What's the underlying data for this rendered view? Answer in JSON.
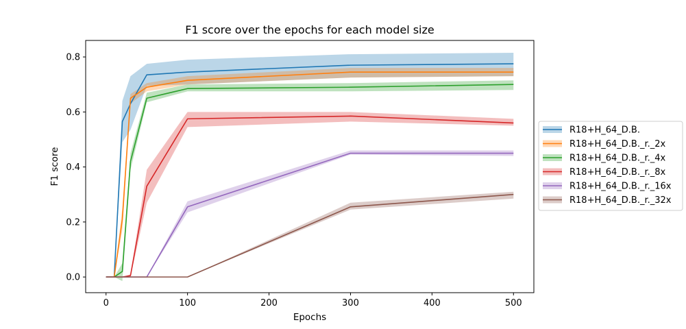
{
  "chart_data": {
    "type": "line",
    "title": "F1 score over the epochs for each model size",
    "xlabel": "Epochs",
    "ylabel": "F1 score",
    "xlim": [
      -25,
      525
    ],
    "ylim": [
      -0.057,
      0.86
    ],
    "xticks": [
      0,
      100,
      200,
      300,
      400,
      500
    ],
    "yticks": [
      0.0,
      0.2,
      0.4,
      0.6,
      0.8
    ],
    "xtick_labels": [
      "0",
      "100",
      "200",
      "300",
      "400",
      "500"
    ],
    "ytick_labels": [
      "0.0",
      "0.2",
      "0.4",
      "0.6",
      "0.8"
    ],
    "grid": false,
    "legend_position": "right, outside plot",
    "x": [
      0,
      10,
      20,
      30,
      50,
      100,
      300,
      500
    ],
    "series": [
      {
        "name": "R18+H_64_D.B.",
        "color": "#1f77b4",
        "values": [
          0.0,
          0.0,
          0.565,
          0.63,
          0.735,
          0.745,
          0.77,
          0.775
        ],
        "lower": [
          0.0,
          0.0,
          0.49,
          0.535,
          0.695,
          0.7,
          0.725,
          0.73
        ],
        "upper": [
          0.0,
          0.0,
          0.64,
          0.73,
          0.775,
          0.79,
          0.81,
          0.815
        ]
      },
      {
        "name": "R18+H_64_D.B._r._2x",
        "color": "#ff7f0e",
        "values": [
          0.0,
          0.0,
          0.21,
          0.65,
          0.69,
          0.715,
          0.745,
          0.745
        ],
        "lower": [
          0.0,
          0.0,
          0.17,
          0.63,
          0.675,
          0.7,
          0.725,
          0.73
        ],
        "upper": [
          0.0,
          0.0,
          0.25,
          0.665,
          0.705,
          0.73,
          0.76,
          0.76
        ]
      },
      {
        "name": "R18+H_64_D.B._r._4x",
        "color": "#2ca02c",
        "values": [
          0.0,
          0.0,
          0.02,
          0.42,
          0.65,
          0.685,
          0.69,
          0.7
        ],
        "lower": [
          0.0,
          0.0,
          -0.015,
          0.39,
          0.635,
          0.675,
          0.675,
          0.68
        ],
        "upper": [
          0.0,
          0.0,
          0.05,
          0.45,
          0.67,
          0.7,
          0.705,
          0.715
        ]
      },
      {
        "name": "R18+H_64_D.B._r._8x",
        "color": "#d62728",
        "values": [
          0.0,
          0.0,
          0.0,
          0.005,
          0.33,
          0.575,
          0.585,
          0.56
        ],
        "lower": [
          0.0,
          0.0,
          0.0,
          0.0,
          0.27,
          0.545,
          0.565,
          0.55
        ],
        "upper": [
          0.0,
          0.0,
          0.0,
          0.01,
          0.39,
          0.6,
          0.6,
          0.575
        ]
      },
      {
        "name": "R18+H_64_D.B._r._16x",
        "color": "#9467bd",
        "values": [
          0.0,
          0.0,
          0.0,
          0.0,
          0.0,
          0.255,
          0.45,
          0.45
        ],
        "lower": [
          0.0,
          0.0,
          0.0,
          0.0,
          0.0,
          0.235,
          0.445,
          0.44
        ],
        "upper": [
          0.0,
          0.0,
          0.0,
          0.0,
          0.0,
          0.275,
          0.46,
          0.46
        ]
      },
      {
        "name": "R18+H_64_D.B._r._32x",
        "color": "#8c564b",
        "values": [
          0.0,
          0.0,
          0.0,
          0.0,
          0.0,
          0.0,
          0.255,
          0.3
        ],
        "lower": [
          0.0,
          0.0,
          0.0,
          0.0,
          0.0,
          0.0,
          0.245,
          0.285
        ],
        "upper": [
          0.0,
          0.0,
          0.0,
          0.0,
          0.0,
          0.0,
          0.27,
          0.31
        ]
      }
    ]
  }
}
